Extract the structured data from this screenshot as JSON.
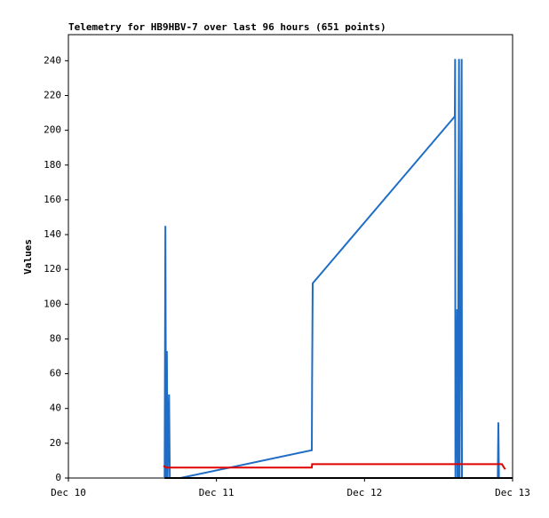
{
  "chart_data": {
    "type": "line",
    "title": "Telemetry for HB9HBV-7 over last 96 hours (651 points)",
    "ylabel": "Values",
    "xlim": [
      0,
      3
    ],
    "ylim": [
      0,
      255
    ],
    "xticks": [
      {
        "value": 0,
        "label": "Dec 10"
      },
      {
        "value": 1,
        "label": "Dec 11"
      },
      {
        "value": 2,
        "label": "Dec 12"
      },
      {
        "value": 3,
        "label": "Dec 13"
      }
    ],
    "yticks": [
      0,
      20,
      40,
      60,
      80,
      100,
      120,
      140,
      160,
      180,
      200,
      220,
      240
    ],
    "series": [
      {
        "color": "#1f6dc5",
        "x": [
          0.65,
          0.655,
          0.66,
          0.665,
          0.67,
          0.68,
          0.685,
          0.756,
          1.644,
          1.646,
          1.65,
          2.61,
          2.612,
          2.614,
          2.626,
          2.628,
          2.63,
          2.638,
          2.64,
          2.642,
          2.656,
          2.658,
          2.66,
          2.9,
          2.904,
          2.908,
          2.95
        ],
        "values": [
          0,
          145,
          0,
          73,
          0,
          48,
          0,
          0,
          16,
          56,
          112,
          208,
          241,
          0,
          97,
          0,
          0,
          241,
          0,
          0,
          241,
          0,
          0,
          0,
          32,
          0,
          0
        ]
      },
      {
        "color": "#e00000",
        "x": [
          0.642,
          0.66,
          1.644,
          1.646,
          2.928,
          2.95
        ],
        "values": [
          7,
          6,
          6,
          8,
          8,
          5
        ]
      },
      {
        "color": "#000000",
        "x": [
          0.65,
          3
        ],
        "values": [
          0,
          0
        ]
      }
    ]
  }
}
